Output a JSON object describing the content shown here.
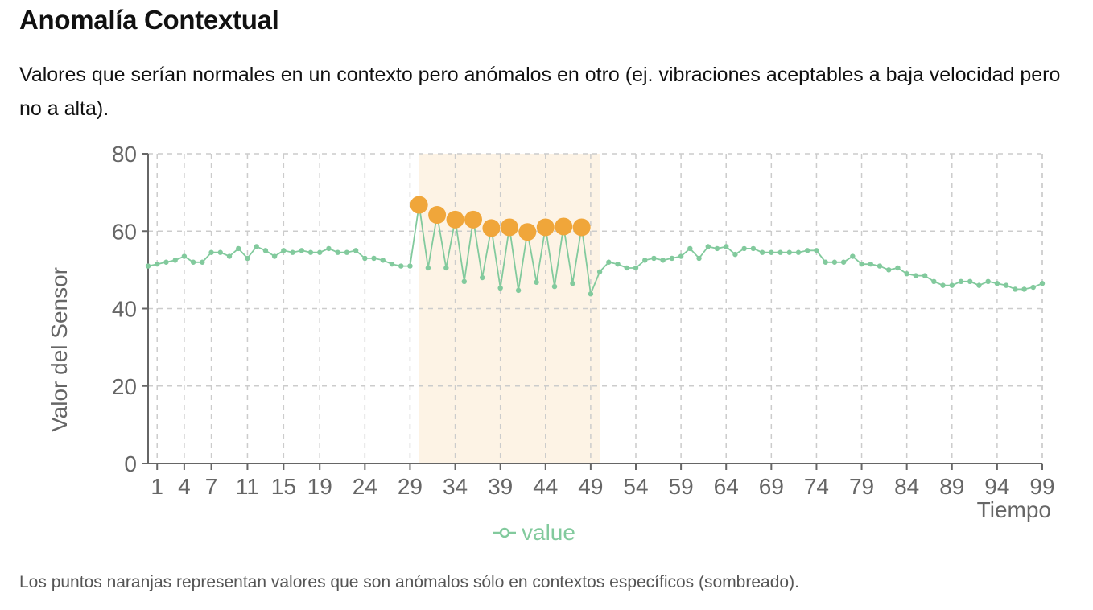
{
  "header": {
    "title": "Anomalía Contextual",
    "description": "Valores que serían normales en un contexto pero anómalos en otro (ej. vibraciones aceptables a baja velocidad pero no a alta)."
  },
  "footnote": "Los puntos naranjas representan valores que son anómalos sólo en contextos específicos (sombreado).",
  "chart_data": {
    "type": "line",
    "title": "",
    "xlabel": "Tiempo",
    "ylabel": "Valor del Sensor",
    "ylim": [
      0,
      80
    ],
    "yticks": [
      0,
      20,
      40,
      60,
      80
    ],
    "xlim": [
      0,
      99
    ],
    "xticks": [
      1,
      4,
      7,
      11,
      15,
      19,
      24,
      29,
      34,
      39,
      44,
      49,
      54,
      59,
      64,
      69,
      74,
      79,
      84,
      89,
      94,
      99
    ],
    "grid": true,
    "legend_position": "bottom",
    "context_region": [
      30,
      50
    ],
    "colors": {
      "line": "#82ca9d",
      "anomaly": "#f0a63a",
      "context_shade": "#fdf3e5"
    },
    "series": [
      {
        "name": "value",
        "x": [
          0,
          1,
          2,
          3,
          4,
          5,
          6,
          7,
          8,
          9,
          10,
          11,
          12,
          13,
          14,
          15,
          16,
          17,
          18,
          19,
          20,
          21,
          22,
          23,
          24,
          25,
          26,
          27,
          28,
          29,
          30,
          31,
          32,
          33,
          34,
          35,
          36,
          37,
          38,
          39,
          40,
          41,
          42,
          43,
          44,
          45,
          46,
          47,
          48,
          49,
          50,
          51,
          52,
          53,
          54,
          55,
          56,
          57,
          58,
          59,
          60,
          61,
          62,
          63,
          64,
          65,
          66,
          67,
          68,
          69,
          70,
          71,
          72,
          73,
          74,
          75,
          76,
          77,
          78,
          79,
          80,
          81,
          82,
          83,
          84,
          85,
          86,
          87,
          88,
          89,
          90,
          91,
          92,
          93,
          94,
          95,
          96,
          97,
          98,
          99
        ],
        "values": [
          51,
          51.5,
          52,
          52.5,
          53.5,
          52,
          52,
          54.5,
          54.5,
          53.5,
          55.5,
          53,
          56,
          55,
          53.5,
          55,
          54.5,
          55,
          54.5,
          54.5,
          55.5,
          54.5,
          54.5,
          55,
          53,
          53,
          52.5,
          51.5,
          51,
          51,
          66.8,
          50.5,
          64.2,
          50.5,
          63,
          47,
          63,
          48,
          60.8,
          45.3,
          61,
          44.7,
          59.8,
          46.8,
          61,
          45.7,
          61.2,
          46.5,
          61,
          43.8,
          49.5,
          52,
          51.5,
          50.5,
          50.5,
          52.5,
          53,
          52.5,
          53,
          53.5,
          55.5,
          53,
          56,
          55.5,
          56,
          54,
          55.5,
          55.5,
          54.5,
          54.5,
          54.5,
          54.5,
          54.5,
          55,
          55,
          52,
          52,
          52,
          53.5,
          51.5,
          51.5,
          51,
          50,
          50.5,
          49,
          48.5,
          48.5,
          47,
          46,
          46,
          47,
          47,
          46,
          47,
          46.5,
          46,
          45,
          45,
          45.5,
          46.5
        ]
      }
    ],
    "anomalies": [
      {
        "x": 30,
        "y": 66.8
      },
      {
        "x": 32,
        "y": 64.2
      },
      {
        "x": 34,
        "y": 63
      },
      {
        "x": 36,
        "y": 63
      },
      {
        "x": 38,
        "y": 60.8
      },
      {
        "x": 40,
        "y": 61
      },
      {
        "x": 42,
        "y": 59.8
      },
      {
        "x": 44,
        "y": 61
      },
      {
        "x": 46,
        "y": 61.2
      },
      {
        "x": 48,
        "y": 61
      }
    ]
  }
}
